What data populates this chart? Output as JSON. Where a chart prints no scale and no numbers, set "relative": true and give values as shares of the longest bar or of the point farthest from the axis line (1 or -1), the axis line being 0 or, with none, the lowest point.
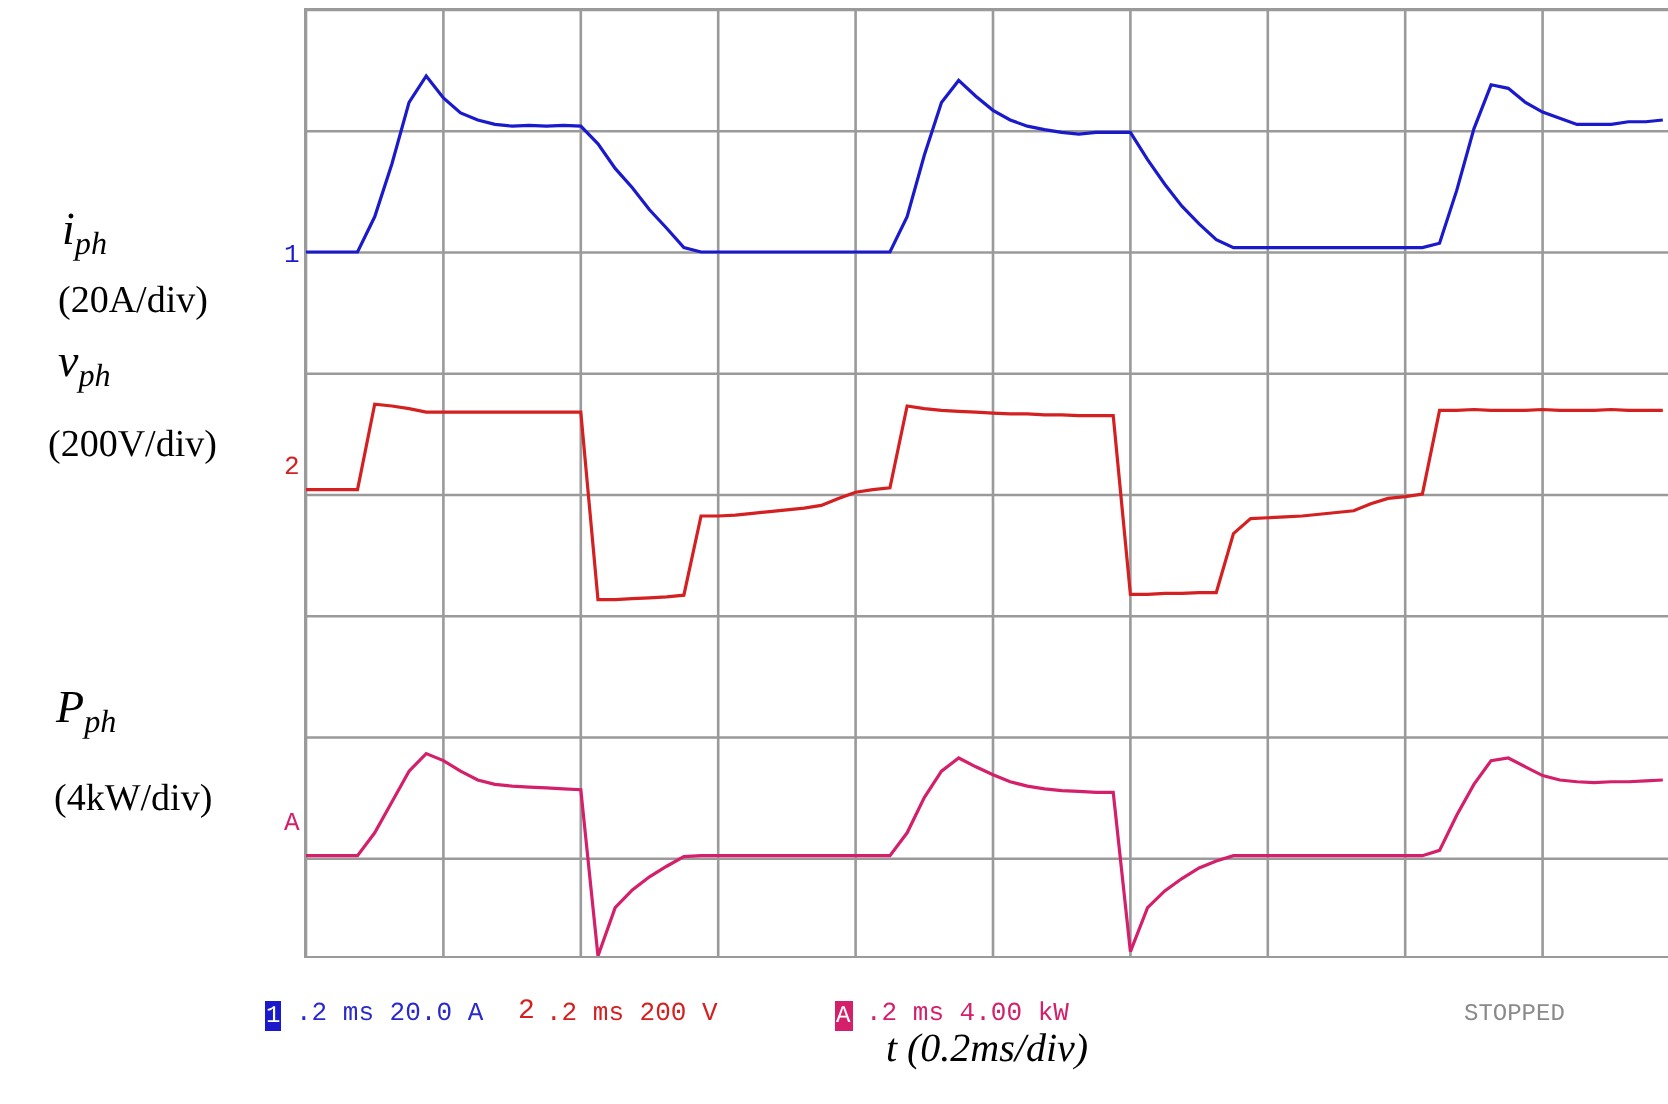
{
  "chart_data": {
    "type": "line",
    "relative": true,
    "grid": true,
    "legend": false,
    "xlabel": "t (0.2ms/div)",
    "categories": [
      null,
      null,
      null,
      null,
      null,
      null,
      null,
      null,
      null,
      null,
      null,
      null,
      null,
      null,
      null,
      null,
      null,
      null,
      null,
      null,
      null,
      null,
      null,
      null,
      null,
      null,
      null,
      null,
      null,
      null,
      null,
      null,
      null,
      null,
      null,
      null,
      null,
      null,
      null,
      null,
      null,
      null,
      null,
      null,
      null,
      null,
      null,
      null,
      null,
      null,
      null,
      null,
      null,
      null,
      null,
      null,
      null,
      null,
      null,
      null,
      null,
      null,
      null,
      null,
      null,
      null,
      null,
      null,
      null,
      null,
      null,
      null,
      null,
      null,
      null,
      null,
      null,
      null,
      null,
      null
    ],
    "series": [
      {
        "color": "#1a1acc",
        "values": [
          0.8,
          0.8,
          0.8,
          0.8,
          0.84,
          0.9,
          0.97,
          1.0,
          0.975,
          0.958,
          0.95,
          0.945,
          0.943,
          0.944,
          0.943,
          0.944,
          0.943,
          0.923,
          0.895,
          0.873,
          0.848,
          0.827,
          0.805,
          0.8,
          0.8,
          0.8,
          0.8,
          0.8,
          0.8,
          0.8,
          0.8,
          0.8,
          0.8,
          0.8,
          0.8,
          0.84,
          0.91,
          0.97,
          0.995,
          0.977,
          0.961,
          0.95,
          0.943,
          0.939,
          0.936,
          0.934,
          0.936,
          0.936,
          0.936,
          0.905,
          0.877,
          0.852,
          0.832,
          0.814,
          0.805,
          0.805,
          0.805,
          0.805,
          0.805,
          0.805,
          0.805,
          0.805,
          0.805,
          0.805,
          0.805,
          0.805,
          0.81,
          0.87,
          0.94,
          0.99,
          0.986,
          0.97,
          0.959,
          0.952,
          0.945,
          0.945,
          0.945,
          0.948,
          0.948,
          0.95
        ]
      },
      {
        "color": "#d42020",
        "values": [
          0.53,
          0.53,
          0.53,
          0.53,
          0.627,
          0.625,
          0.622,
          0.618,
          0.618,
          0.618,
          0.618,
          0.618,
          0.618,
          0.618,
          0.618,
          0.618,
          0.618,
          0.405,
          0.405,
          0.406,
          0.407,
          0.408,
          0.41,
          0.5,
          0.5,
          0.501,
          0.503,
          0.505,
          0.507,
          0.509,
          0.512,
          0.52,
          0.527,
          0.53,
          0.532,
          0.625,
          0.622,
          0.62,
          0.619,
          0.618,
          0.617,
          0.616,
          0.616,
          0.615,
          0.615,
          0.614,
          0.614,
          0.614,
          0.411,
          0.411,
          0.412,
          0.412,
          0.413,
          0.413,
          0.48,
          0.497,
          0.498,
          0.499,
          0.5,
          0.502,
          0.504,
          0.506,
          0.514,
          0.52,
          0.522,
          0.525,
          0.62,
          0.62,
          0.621,
          0.62,
          0.62,
          0.62,
          0.621,
          0.62,
          0.62,
          0.62,
          0.621,
          0.62,
          0.62,
          0.62
        ]
      },
      {
        "color": "#d4206a",
        "values": [
          0.114,
          0.114,
          0.114,
          0.114,
          0.14,
          0.175,
          0.21,
          0.23,
          0.222,
          0.21,
          0.2,
          0.195,
          0.193,
          0.192,
          0.191,
          0.19,
          0.189,
          0.0,
          0.055,
          0.075,
          0.09,
          0.102,
          0.113,
          0.114,
          0.114,
          0.114,
          0.114,
          0.114,
          0.114,
          0.114,
          0.114,
          0.114,
          0.114,
          0.114,
          0.114,
          0.14,
          0.18,
          0.21,
          0.225,
          0.215,
          0.206,
          0.198,
          0.193,
          0.19,
          0.188,
          0.187,
          0.186,
          0.186,
          0.005,
          0.055,
          0.074,
          0.088,
          0.1,
          0.108,
          0.114,
          0.114,
          0.114,
          0.114,
          0.114,
          0.114,
          0.114,
          0.114,
          0.114,
          0.114,
          0.114,
          0.114,
          0.12,
          0.16,
          0.195,
          0.222,
          0.225,
          0.215,
          0.205,
          0.2,
          0.198,
          0.197,
          0.198,
          0.198,
          0.199,
          0.2
        ]
      }
    ],
    "annotations": [
      "i$_{ph}$",
      "v$_{ph}$",
      "P$_{ph}$",
      "(20A/div)",
      "(200V/div)",
      "(4kW/div)",
      "1",
      "2",
      "A",
      "1",
      ".2 ms 20.0 A",
      "2",
      ".2 ms 200 V",
      "A",
      ".2 ms 4.00 kW",
      "STOPPED"
    ]
  }
}
